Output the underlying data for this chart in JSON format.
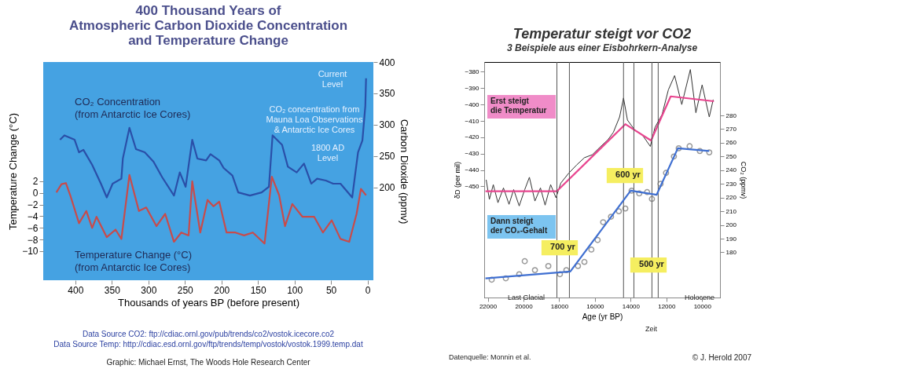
{
  "chart_data": [
    {
      "type": "line",
      "title": "400 Thousand Years of\nAtmospheric Carbon Dioxide Concentration\nand Temperature Change",
      "xlabel": "Thousands of years BP (before present)",
      "ylabel": "Temperature Change (°C)",
      "y2label": "Carbon Dioxide (ppmv)",
      "xlim": [
        444,
        -8
      ],
      "xticks": [
        400,
        350,
        300,
        250,
        200,
        150,
        100,
        50,
        0
      ],
      "ylim": [
        -15,
        22.5
      ],
      "yticks": [
        2,
        0,
        -2,
        -4,
        -6,
        -8,
        -10
      ],
      "y2lim": [
        52,
        400
      ],
      "y2ticks": [
        200,
        250,
        300,
        350,
        400
      ],
      "grid": false,
      "legend": false,
      "series": [
        {
          "name": "CO₂ Concentration\n(from Antarctic Ice Cores)",
          "color": "#2a4fa8",
          "axis": "y2",
          "x": [
            421,
            415,
            401,
            395,
            389,
            377,
            365,
            357,
            349,
            337,
            335,
            326,
            317,
            305,
            293,
            281,
            265,
            257,
            249,
            240,
            233,
            221,
            215,
            203,
            197,
            185,
            177,
            161,
            145,
            135,
            130,
            117,
            109,
            97,
            87,
            77,
            69,
            57,
            47,
            37,
            21,
            13,
            7,
            3,
            2
          ],
          "values": [
            276,
            283,
            276,
            256,
            260,
            236,
            206,
            184,
            206,
            214,
            246,
            295,
            261,
            256,
            241,
            216,
            187,
            224,
            201,
            276,
            246,
            243,
            253,
            243,
            231,
            219,
            192,
            187,
            192,
            201,
            283,
            268,
            233,
            224,
            238,
            206,
            214,
            211,
            206,
            206,
            184,
            256,
            275,
            330,
            374
          ]
        },
        {
          "name": "Temperature Change (°C)\n(from Antarctic Ice Cores)",
          "color": "#c84b4b",
          "axis": "y",
          "x": [
            426,
            419,
            413,
            407,
            395,
            385,
            377,
            371,
            357,
            345,
            337,
            326,
            313,
            303,
            289,
            277,
            265,
            255,
            245,
            240,
            229,
            219,
            211,
            203,
            193,
            181,
            169,
            157,
            141,
            131,
            121,
            113,
            103,
            89,
            73,
            61,
            49,
            37,
            25,
            15,
            9,
            2
          ],
          "values": [
            0.1,
            1.5,
            1.7,
            -0.4,
            -5.2,
            -3.1,
            -6,
            -4.1,
            -7.6,
            -6.3,
            -7.9,
            3.1,
            -3.1,
            -2.5,
            -5.7,
            -3.6,
            -8.4,
            -6.8,
            -7.3,
            2,
            -6.8,
            -1.2,
            -2.3,
            -1.5,
            -6.8,
            -6.8,
            -7.3,
            -6.8,
            -8.7,
            2.8,
            -0.4,
            -5.7,
            -1.9,
            -4.1,
            -4.1,
            -6.8,
            -4.7,
            -7.9,
            -8.4,
            -3.6,
            0.7,
            -0.4
          ]
        }
      ],
      "annotations": [
        "Current\nLevel",
        "CO₂ concentration from\nMauna Loa Observations\n& Antarctic Ice Cores",
        "1800 AD\nLevel",
        "Data Source CO2: ftp://cdiac.ornl.gov/pub/trends/co2/vostok.icecore.co2",
        "Data Source Temp: http://cdiac.esd.ornl.gov/ftp/trends/temp/vostok/vostok.1999.temp.dat",
        "Graphic: Michael Ernst, The Woods Hole Research Center"
      ]
    },
    {
      "type": "line",
      "title": "Temperatur steigt vor CO2",
      "subtitle": "3 Beispiele aus einer Eisbohrkern-Analyse",
      "xlabel": "Age (yr BP)",
      "ylabel": "δD (per mil)",
      "y2label": "CO₂ (ppmv)",
      "xlim": [
        22200,
        9000
      ],
      "xticks": [
        22000,
        20000,
        18000,
        16000,
        14000,
        12000,
        10000
      ],
      "ylim": [
        -518,
        -374
      ],
      "yticks": [
        -380,
        -390,
        -400,
        -410,
        -420,
        -430,
        -440,
        -450
      ],
      "y2lim": [
        147,
        319
      ],
      "y2ticks": [
        280,
        270,
        260,
        250,
        240,
        230,
        220,
        210,
        200,
        190,
        180
      ],
      "grid": false,
      "legend": false,
      "series": [
        {
          "color": "#333333",
          "axis": "y",
          "x": [
            22090,
            21910,
            21690,
            21430,
            21120,
            20810,
            20550,
            20240,
            19930,
            19670,
            19360,
            19050,
            18790,
            18480,
            18180,
            17910,
            17470,
            17030,
            16590,
            16150,
            15710,
            15270,
            14970,
            14620,
            14400,
            14180,
            13780,
            13340,
            12900,
            12640,
            12240,
            11890,
            11540,
            11140,
            10660,
            10350,
            10000,
            9600,
            9380
          ],
          "values": [
            -446,
            -458,
            -449,
            -460,
            -451,
            -461,
            -452,
            -462,
            -452,
            -444.5,
            -459,
            -451,
            -461.5,
            -449,
            -457,
            -448,
            -442,
            -437,
            -432.5,
            -430.7,
            -426,
            -421.5,
            -417,
            -407.6,
            -396,
            -409.5,
            -415.5,
            -418.7,
            -425.6,
            -414,
            -406,
            -391,
            -382.3,
            -400,
            -378.6,
            -405,
            -388,
            -407.6,
            -397
          ]
        },
        {
          "color": "#e8458f",
          "axis": "y",
          "x": [
            22130,
            18130,
            14300,
            12860,
            11760,
            9340
          ],
          "values": [
            -453,
            -453,
            -412,
            -422,
            -395,
            -398
          ]
        },
        {
          "type": "scatter",
          "color": "#6e6e6e",
          "axis": "y2",
          "x": [
            21780,
            20990,
            20240,
            19930,
            19360,
            18610,
            17960,
            17600,
            16950,
            16590,
            16200,
            15850,
            15540,
            15100,
            14660,
            14300,
            13950,
            13520,
            13080,
            12810,
            12330,
            12020,
            11580,
            11310,
            10700,
            10130,
            9600
          ],
          "values": [
            160,
            161,
            164,
            173.5,
            167,
            170,
            164,
            167,
            170,
            173,
            182,
            189,
            202,
            206,
            210,
            212,
            225,
            223,
            224,
            219,
            230,
            238,
            250,
            256,
            257.5,
            254,
            253
          ]
        },
        {
          "color": "#3f6fd1",
          "axis": "y2",
          "x": [
            22130,
            17380,
            14000,
            12550,
            11360,
            9600
          ],
          "values": [
            161,
            166,
            225,
            222,
            256,
            254
          ]
        }
      ],
      "ref_lines": [
        {
          "axis": "x",
          "value": 18130,
          "color": "#555555"
        },
        {
          "axis": "x",
          "value": 17430,
          "color": "#555555"
        },
        {
          "axis": "x",
          "value": 14400,
          "color": "#555555"
        },
        {
          "axis": "x",
          "value": 13820,
          "color": "#555555"
        },
        {
          "axis": "x",
          "value": 12810,
          "color": "#555555"
        },
        {
          "axis": "x",
          "value": 12460,
          "color": "#555555"
        }
      ],
      "annotations": [
        "Erst steigt die Temperatur",
        "Dann steigt der CO₂-Gehalt",
        "600 yr",
        "700 yr",
        "500 yr",
        "Last Glacial",
        "Holocene",
        "Zeit",
        "Datenquelle: Monnin et al.",
        "© J. Herold 2007"
      ]
    }
  ]
}
